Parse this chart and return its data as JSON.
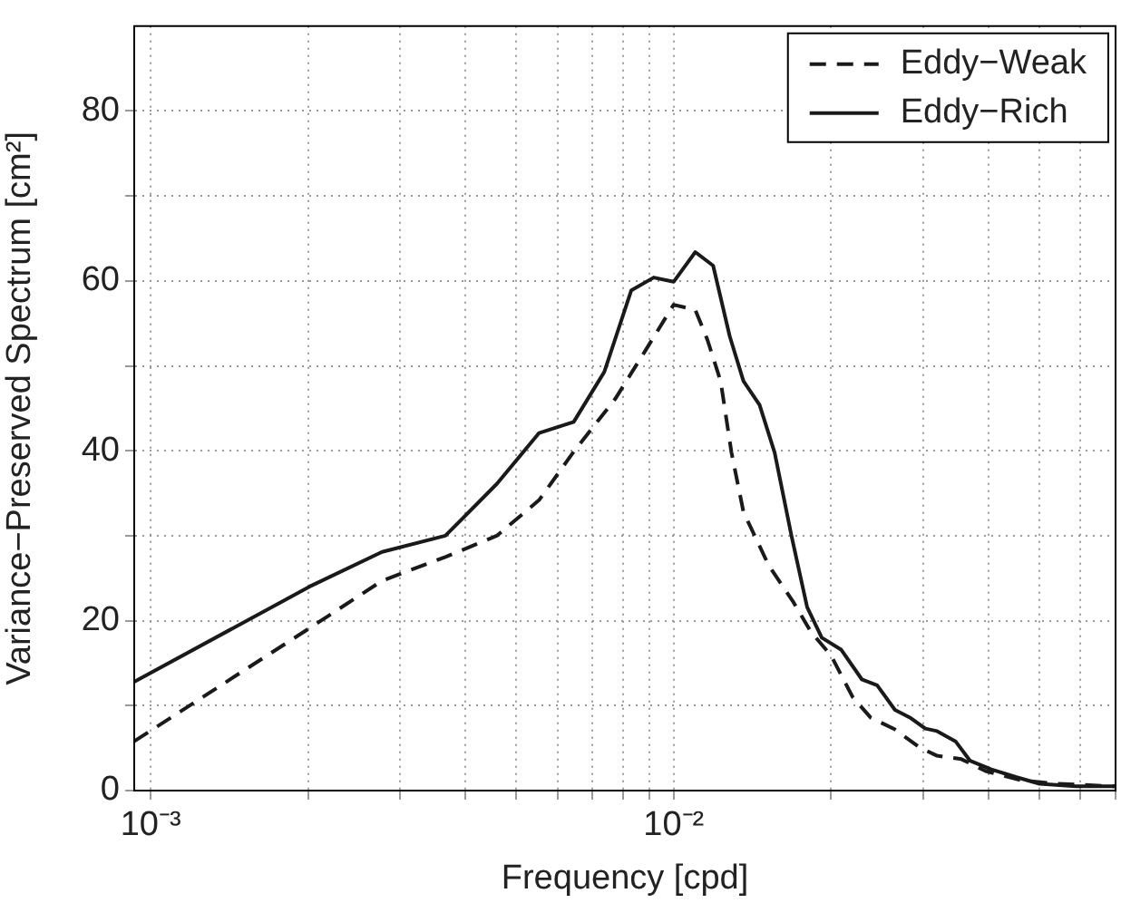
{
  "chart_data": {
    "type": "line",
    "xlabel": "Frequency [cpd]",
    "ylabel": "Variance−Preserved Spectrum [cm²]",
    "log": "x",
    "xlim": [
      0.00093,
      0.07
    ],
    "ylim": [
      0,
      90
    ],
    "xticks": [
      {
        "value": 0.001,
        "label": "10⁻³"
      },
      {
        "value": 0.002,
        "label": null
      },
      {
        "value": 0.003,
        "label": null
      },
      {
        "value": 0.004,
        "label": null
      },
      {
        "value": 0.005,
        "label": null
      },
      {
        "value": 0.006,
        "label": null
      },
      {
        "value": 0.007,
        "label": null
      },
      {
        "value": 0.008,
        "label": null
      },
      {
        "value": 0.009,
        "label": null
      },
      {
        "value": 0.01,
        "label": "10⁻²"
      },
      {
        "value": 0.02,
        "label": null
      },
      {
        "value": 0.03,
        "label": null
      },
      {
        "value": 0.04,
        "label": null
      },
      {
        "value": 0.05,
        "label": null
      },
      {
        "value": 0.06,
        "label": null
      },
      {
        "value": 0.07,
        "label": null
      }
    ],
    "yticks": [
      0,
      {
        "value": 10,
        "label": null
      },
      20,
      {
        "value": 30,
        "label": null
      },
      40,
      {
        "value": 50,
        "label": null
      },
      60,
      {
        "value": 70,
        "label": null
      },
      80
    ],
    "grid": true,
    "legend": "top right",
    "marker": "none",
    "series": [
      {
        "name": "Eddy−Weak",
        "color": "#1a1a1a",
        "line_style": "dashed",
        "x": [
          0.00093,
          0.00201,
          0.00277,
          0.00366,
          0.00459,
          0.00553,
          0.00644,
          0.00773,
          0.00881,
          0.01,
          0.011,
          0.0116,
          0.0123,
          0.0129,
          0.0136,
          0.0152,
          0.0169,
          0.0183,
          0.02,
          0.022,
          0.0238,
          0.0265,
          0.0295,
          0.0319,
          0.0355,
          0.0395,
          0.0463,
          0.0542,
          0.0698
        ],
        "values": [
          5.8,
          19.1,
          24.7,
          27.5,
          30.0,
          34.2,
          39.9,
          46.1,
          51.7,
          57.2,
          56.6,
          53.1,
          48.2,
          39.8,
          32.8,
          26.5,
          22.3,
          18.7,
          15.9,
          11.0,
          8.6,
          7.2,
          5.1,
          4.1,
          3.7,
          2.3,
          1.2,
          0.8,
          0.5
        ]
      },
      {
        "name": "Eddy−Rich",
        "color": "#1a1a1a",
        "line_style": "solid",
        "x": [
          0.00093,
          0.00201,
          0.00277,
          0.00366,
          0.00459,
          0.00553,
          0.00644,
          0.00737,
          0.0083,
          0.00916,
          0.01,
          0.011,
          0.0119,
          0.0128,
          0.0136,
          0.0146,
          0.0156,
          0.0168,
          0.018,
          0.0192,
          0.0209,
          0.0229,
          0.0245,
          0.0265,
          0.0283,
          0.0303,
          0.0319,
          0.0346,
          0.0369,
          0.0405,
          0.0451,
          0.0501,
          0.0588,
          0.0698
        ],
        "values": [
          12.8,
          24.0,
          28.1,
          30.0,
          36.1,
          42.1,
          43.4,
          49.3,
          58.9,
          60.4,
          59.9,
          63.4,
          61.8,
          53.5,
          48.2,
          45.4,
          39.8,
          30.0,
          21.6,
          18.0,
          16.6,
          13.1,
          12.4,
          9.5,
          8.6,
          7.3,
          7.0,
          5.8,
          3.5,
          2.5,
          1.6,
          0.8,
          0.5,
          0.5
        ]
      }
    ]
  }
}
